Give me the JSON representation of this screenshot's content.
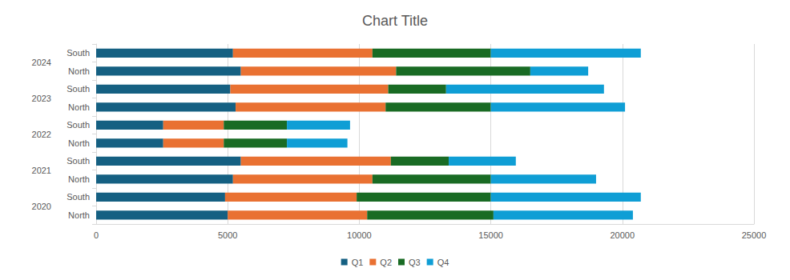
{
  "chart_data": {
    "type": "bar",
    "title": "Chart Title",
    "orientation": "horizontal",
    "stacked": true,
    "categories": [
      "North",
      "South",
      "North",
      "South",
      "North",
      "South",
      "North",
      "South",
      "North",
      "South"
    ],
    "category_groups": [
      "2020",
      "2021",
      "2022",
      "2023",
      "2024"
    ],
    "series": [
      {
        "name": "Q1",
        "color": "#156082",
        "values": [
          5000,
          4900,
          5200,
          5500,
          2550,
          2550,
          5300,
          5100,
          5500,
          5200
        ]
      },
      {
        "name": "Q2",
        "color": "#E97132",
        "values": [
          5300,
          5000,
          5300,
          5700,
          2300,
          2300,
          5700,
          6000,
          5900,
          5300
        ]
      },
      {
        "name": "Q3",
        "color": "#196B24",
        "values": [
          4800,
          5100,
          4500,
          2200,
          2400,
          2400,
          4000,
          2200,
          5100,
          4500
        ]
      },
      {
        "name": "Q4",
        "color": "#0F9ED5",
        "values": [
          5300,
          5700,
          4000,
          2550,
          2300,
          2400,
          5100,
          6000,
          2200,
          5700
        ]
      }
    ],
    "xlim": [
      0,
      25000
    ],
    "xticks": [
      0,
      5000,
      10000,
      15000,
      20000,
      25000
    ],
    "grid": true,
    "legend": "bottom"
  }
}
